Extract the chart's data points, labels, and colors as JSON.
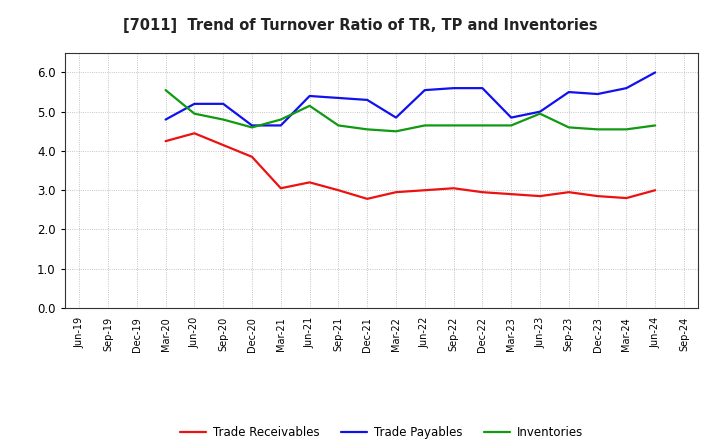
{
  "title": "[7011]  Trend of Turnover Ratio of TR, TP and Inventories",
  "x_labels": [
    "Jun-19",
    "Sep-19",
    "Dec-19",
    "Mar-20",
    "Jun-20",
    "Sep-20",
    "Dec-20",
    "Mar-21",
    "Jun-21",
    "Sep-21",
    "Dec-21",
    "Mar-22",
    "Jun-22",
    "Sep-22",
    "Dec-22",
    "Mar-23",
    "Jun-23",
    "Sep-23",
    "Dec-23",
    "Mar-24",
    "Jun-24",
    "Sep-24"
  ],
  "trade_receivables": [
    null,
    null,
    null,
    4.25,
    4.45,
    4.15,
    3.85,
    3.05,
    3.2,
    3.0,
    2.78,
    2.95,
    3.0,
    3.05,
    2.95,
    2.9,
    2.85,
    2.95,
    2.85,
    2.8,
    3.0,
    null
  ],
  "trade_payables": [
    null,
    null,
    null,
    4.8,
    5.2,
    5.2,
    4.65,
    4.65,
    5.4,
    5.35,
    5.3,
    4.85,
    5.55,
    5.6,
    5.6,
    4.85,
    5.0,
    5.5,
    5.45,
    5.6,
    6.0,
    null
  ],
  "inventories": [
    null,
    null,
    null,
    5.55,
    4.95,
    4.8,
    4.6,
    4.8,
    5.15,
    4.65,
    4.55,
    4.5,
    4.65,
    4.65,
    4.65,
    4.65,
    4.95,
    4.6,
    4.55,
    4.55,
    4.65,
    null
  ],
  "ylim": [
    0,
    6.5
  ],
  "yticks": [
    0.0,
    1.0,
    2.0,
    3.0,
    4.0,
    5.0,
    6.0
  ],
  "color_tr": "#ee1111",
  "color_tp": "#1111ee",
  "color_inv": "#119911",
  "legend_labels": [
    "Trade Receivables",
    "Trade Payables",
    "Inventories"
  ],
  "background_color": "#ffffff",
  "plot_bg_color": "#ffffff",
  "grid_color": "#aaaaaa",
  "linewidth": 1.6
}
